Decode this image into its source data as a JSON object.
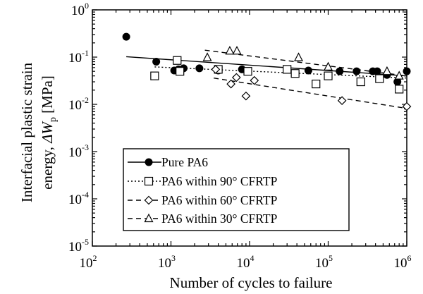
{
  "chart_data": {
    "type": "scatter",
    "xscale": "log",
    "yscale": "log",
    "xlim": [
      100,
      1000000
    ],
    "ylim": [
      1e-05,
      1
    ],
    "xlabel": "Number of cycles to failure",
    "ylabel_line1": "Interfacial plastic strain",
    "ylabel_line2_prefix": "energy, ",
    "ylabel_symbol": "ΔW",
    "ylabel_subscript": "p",
    "ylabel_unit": " [MPa]",
    "x_ticks": [
      {
        "base": "10",
        "exp": "2",
        "value": 100
      },
      {
        "base": "10",
        "exp": "3",
        "value": 1000
      },
      {
        "base": "10",
        "exp": "4",
        "value": 10000
      },
      {
        "base": "10",
        "exp": "5",
        "value": 100000
      },
      {
        "base": "10",
        "exp": "6",
        "value": 1000000
      }
    ],
    "y_ticks": [
      {
        "base": "10",
        "exp": "0",
        "value": 1
      },
      {
        "base": "10",
        "exp": "-1",
        "value": 0.1
      },
      {
        "base": "10",
        "exp": "-2",
        "value": 0.01
      },
      {
        "base": "10",
        "exp": "-3",
        "value": 0.001
      },
      {
        "base": "10",
        "exp": "-4",
        "value": 0.0001
      },
      {
        "base": "10",
        "exp": "-5",
        "value": 1e-05
      }
    ],
    "grid": false,
    "legend_position": "bottom-left",
    "series": [
      {
        "name": "Pure PA6",
        "marker": "filled-circle",
        "line_style": "solid",
        "fit": [
          [
            270,
            0.102
          ],
          [
            1000000,
            0.04
          ]
        ],
        "points": [
          [
            270,
            0.27
          ],
          [
            650,
            0.08
          ],
          [
            1100,
            0.052
          ],
          [
            1250,
            0.055
          ],
          [
            1450,
            0.058
          ],
          [
            2300,
            0.058
          ],
          [
            4000,
            0.052
          ],
          [
            8000,
            0.055
          ],
          [
            56000,
            0.052
          ],
          [
            140000,
            0.05
          ],
          [
            230000,
            0.05
          ],
          [
            370000,
            0.05
          ],
          [
            420000,
            0.05
          ],
          [
            560000,
            0.042
          ],
          [
            760000,
            0.03
          ],
          [
            1000000,
            0.05
          ]
        ]
      },
      {
        "name": "PA6 within 90° CFRTP",
        "marker": "open-square",
        "line_style": "dotted",
        "fit": [
          [
            620,
            0.062
          ],
          [
            1000000,
            0.036
          ]
        ],
        "points": [
          [
            620,
            0.04
          ],
          [
            1200,
            0.085
          ],
          [
            1300,
            0.05
          ],
          [
            4000,
            0.055
          ],
          [
            9500,
            0.05
          ],
          [
            30000,
            0.055
          ],
          [
            38000,
            0.045
          ],
          [
            70000,
            0.027
          ],
          [
            100000,
            0.04
          ],
          [
            260000,
            0.03
          ],
          [
            450000,
            0.035
          ],
          [
            800000,
            0.021
          ]
        ]
      },
      {
        "name": "PA6 within 60° CFRTP",
        "marker": "open-diamond",
        "line_style": "dashed",
        "fit": [
          [
            3500,
            0.036
          ],
          [
            1000000,
            0.0082
          ]
        ],
        "points": [
          [
            3700,
            0.055
          ],
          [
            5800,
            0.027
          ],
          [
            6800,
            0.037
          ],
          [
            9000,
            0.015
          ],
          [
            11500,
            0.032
          ],
          [
            150000,
            0.012
          ],
          [
            1000000,
            0.009
          ]
        ]
      },
      {
        "name": "PA6 within 30° CFRTP",
        "marker": "open-triangle",
        "line_style": "dashed",
        "fit": [
          [
            2700,
            0.14
          ],
          [
            1000000,
            0.04
          ]
        ],
        "points": [
          [
            2900,
            0.098
          ],
          [
            5600,
            0.135
          ],
          [
            6900,
            0.135
          ],
          [
            42000,
            0.098
          ],
          [
            100000,
            0.062
          ],
          [
            560000,
            0.05
          ],
          [
            800000,
            0.04
          ]
        ]
      }
    ]
  }
}
